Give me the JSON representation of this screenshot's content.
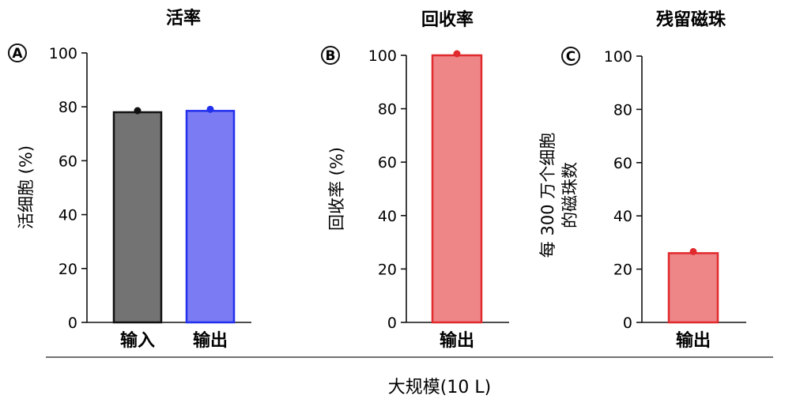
{
  "footer": {
    "label": "大规模(10 L)"
  },
  "chart_data": [
    {
      "type": "bar",
      "panel": "A",
      "title": "活率",
      "ylabel": "活细胞 (%)",
      "ylim": [
        0,
        100
      ],
      "yticks": [
        "0",
        "20",
        "40",
        "60",
        "80",
        "100"
      ],
      "categories": [
        "输入",
        "输出"
      ],
      "values": [
        78,
        78.5
      ],
      "colors": [
        "#737373",
        "#7b7cf3"
      ],
      "edge_colors": [
        "#111111",
        "#2230ee"
      ],
      "dot_colors": [
        "#111111",
        "#2230ee"
      ]
    },
    {
      "type": "bar",
      "panel": "B",
      "title": "回收率",
      "ylabel": "回收率 (%)",
      "ylim": [
        0,
        100
      ],
      "yticks": [
        "0",
        "20",
        "40",
        "60",
        "80",
        "100"
      ],
      "categories": [
        "输出"
      ],
      "values": [
        100
      ],
      "colors": [
        "#ee8587"
      ],
      "edge_colors": [
        "#e02a2d"
      ],
      "dot_colors": [
        "#e02a2d"
      ]
    },
    {
      "type": "bar",
      "panel": "C",
      "title": "残留磁珠",
      "ylabel": [
        "每 300 万个细胞",
        "的磁珠数"
      ],
      "ylim": [
        0,
        100
      ],
      "yticks": [
        "0",
        "20",
        "40",
        "60",
        "80",
        "100"
      ],
      "categories": [
        "输出"
      ],
      "values": [
        26
      ],
      "colors": [
        "#ee8587"
      ],
      "edge_colors": [
        "#e02a2d"
      ],
      "dot_colors": [
        "#e02a2d"
      ]
    }
  ]
}
